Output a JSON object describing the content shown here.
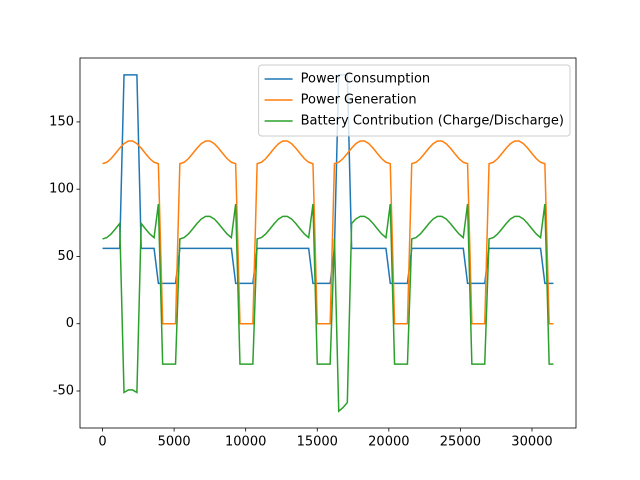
{
  "chart_data": {
    "type": "line",
    "x": [
      0,
      300,
      600,
      900,
      1200,
      1500,
      1800,
      2100,
      2400,
      2700,
      3000,
      3300,
      3600,
      3900,
      4200,
      4500,
      4800,
      5100,
      5400,
      5700,
      6000,
      6300,
      6600,
      6900,
      7200,
      7500,
      7800,
      8100,
      8400,
      8700,
      9000,
      9300,
      9600,
      9900,
      10200,
      10500,
      10800,
      11100,
      11400,
      11700,
      12000,
      12300,
      12600,
      12900,
      13200,
      13500,
      13800,
      14100,
      14400,
      14700,
      15000,
      15300,
      15600,
      15900,
      16200,
      16500,
      16800,
      17100,
      17400,
      17700,
      18000,
      18300,
      18600,
      18900,
      19200,
      19500,
      19800,
      20100,
      20400,
      20700,
      21000,
      21300,
      21600,
      21900,
      22200,
      22500,
      22800,
      23100,
      23400,
      23700,
      24000,
      24300,
      24600,
      24900,
      25200,
      25500,
      25800,
      26100,
      26400,
      26700,
      27000,
      27300,
      27600,
      27900,
      28200,
      28500,
      28800,
      29100,
      29400,
      29700,
      30000,
      30300,
      30600,
      30900,
      31200,
      31500
    ],
    "series": [
      {
        "name": "Power Consumption",
        "color": "#1f77b4",
        "values": [
          56,
          56,
          56,
          56,
          56,
          185,
          185,
          185,
          185,
          56,
          56,
          56,
          56,
          30,
          30,
          30,
          30,
          30,
          56,
          56,
          56,
          56,
          56,
          56,
          56,
          56,
          56,
          56,
          56,
          56,
          56,
          30,
          30,
          30,
          30,
          30,
          56,
          56,
          56,
          56,
          56,
          56,
          56,
          56,
          56,
          56,
          56,
          56,
          56,
          30,
          30,
          30,
          30,
          30,
          56,
          185,
          185,
          185,
          56,
          56,
          56,
          56,
          56,
          56,
          56,
          56,
          56,
          30,
          30,
          30,
          30,
          30,
          56,
          56,
          56,
          56,
          56,
          56,
          56,
          56,
          56,
          56,
          56,
          56,
          56,
          30,
          30,
          30,
          30,
          30,
          56,
          56,
          56,
          56,
          56,
          56,
          56,
          56,
          56,
          56,
          56,
          56,
          56,
          30,
          30,
          30
        ]
      },
      {
        "name": "Power Generation",
        "color": "#ff7f0e",
        "values": [
          119,
          120,
          122.7,
          126.5,
          130.5,
          133.9,
          135.8,
          135.8,
          133.9,
          130.5,
          126.5,
          122.7,
          120,
          119,
          0,
          0,
          0,
          0,
          119,
          120,
          122.7,
          126.5,
          130.5,
          133.9,
          135.8,
          135.8,
          133.9,
          130.5,
          126.5,
          122.7,
          120,
          119,
          0,
          0,
          0,
          0,
          119,
          120,
          122.7,
          126.5,
          130.5,
          133.9,
          135.8,
          135.8,
          133.9,
          130.5,
          126.5,
          122.7,
          120,
          119,
          0,
          0,
          0,
          0,
          119,
          120,
          122.7,
          126.5,
          130.5,
          133.9,
          135.8,
          135.8,
          133.9,
          130.5,
          126.5,
          122.7,
          120,
          119,
          0,
          0,
          0,
          0,
          119,
          120,
          122.7,
          126.5,
          130.5,
          133.9,
          135.8,
          135.8,
          133.9,
          130.5,
          126.5,
          122.7,
          120,
          119,
          0,
          0,
          0,
          0,
          119,
          120,
          122.7,
          126.5,
          130.5,
          133.9,
          135.8,
          135.8,
          133.9,
          130.5,
          126.5,
          122.7,
          120,
          119,
          0,
          0
        ]
      },
      {
        "name": "Battery Contribution (Charge/Discharge)",
        "color": "#2ca02c",
        "values": [
          63,
          64,
          66.7,
          70.5,
          74.5,
          -51.1,
          -49.2,
          -49.2,
          -51.1,
          74.5,
          70.5,
          66.7,
          64,
          89,
          -30,
          -30,
          -30,
          -30,
          63,
          64,
          66.7,
          70.5,
          74.5,
          77.9,
          79.8,
          79.8,
          77.9,
          74.5,
          70.5,
          66.7,
          64,
          89,
          -30,
          -30,
          -30,
          -30,
          63,
          64,
          66.7,
          70.5,
          74.5,
          77.9,
          79.8,
          79.8,
          77.9,
          74.5,
          70.5,
          66.7,
          64,
          89,
          -30,
          -30,
          -30,
          -30,
          63,
          -65,
          -62.3,
          -58.5,
          74.5,
          77.9,
          79.8,
          79.8,
          77.9,
          74.5,
          70.5,
          66.7,
          64,
          89,
          -30,
          -30,
          -30,
          -30,
          63,
          64,
          66.7,
          70.5,
          74.5,
          77.9,
          79.8,
          79.8,
          77.9,
          74.5,
          70.5,
          66.7,
          64,
          89,
          -30,
          -30,
          -30,
          -30,
          63,
          64,
          66.7,
          70.5,
          74.5,
          77.9,
          79.8,
          79.8,
          77.9,
          74.5,
          70.5,
          66.7,
          64,
          89,
          -30,
          -30
        ]
      }
    ],
    "xlim": [
      -1575,
      33075
    ],
    "xticks": [
      0,
      5000,
      10000,
      15000,
      20000,
      25000,
      30000
    ],
    "ylim": [
      -77.5,
      197.5
    ],
    "yticks": [
      -50,
      0,
      50,
      100,
      150
    ],
    "legend": "upper right"
  }
}
